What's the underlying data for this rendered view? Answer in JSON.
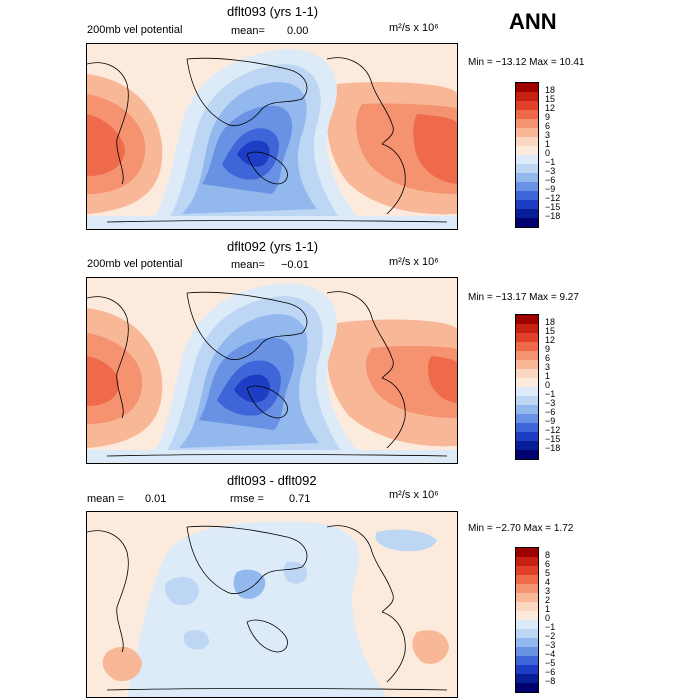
{
  "season": "ANN",
  "panels": [
    {
      "title": "dflt093 (yrs 1-1)",
      "field_label": "200mb vel potential",
      "mean_label": "mean=",
      "mean_value": "0.00",
      "units": "m²/s x 10⁶",
      "min_max": "Min = −13.12 Max =   10.41",
      "levels": [
        "18",
        "15",
        "12",
        "9",
        "6",
        "3",
        "1",
        "0",
        "−1",
        "−3",
        "−6",
        "−9",
        "−12",
        "−15",
        "−18"
      ],
      "colors": [
        "#9e0000",
        "#c82010",
        "#e0402a",
        "#ee6a4a",
        "#f59270",
        "#f8b898",
        "#fbd6c0",
        "#fcebdd",
        "#dcebf7",
        "#bcd6f4",
        "#92b8ee",
        "#6992e4",
        "#3f66d8",
        "#1e3cc4",
        "#081e96",
        "#00006e"
      ]
    },
    {
      "title": "dflt092 (yrs 1-1)",
      "field_label": "200mb vel potential",
      "mean_label": "mean=",
      "mean_value": "−0.01",
      "units": "m²/s x 10⁶",
      "min_max": "Min = −13.17 Max =    9.27",
      "levels": [
        "18",
        "15",
        "12",
        "9",
        "6",
        "3",
        "1",
        "0",
        "−1",
        "−3",
        "−6",
        "−9",
        "−12",
        "−15",
        "−18"
      ],
      "colors": [
        "#9e0000",
        "#c82010",
        "#e0402a",
        "#ee6a4a",
        "#f59270",
        "#f8b898",
        "#fbd6c0",
        "#fcebdd",
        "#dcebf7",
        "#bcd6f4",
        "#92b8ee",
        "#6992e4",
        "#3f66d8",
        "#1e3cc4",
        "#081e96",
        "#00006e"
      ]
    },
    {
      "title": "dflt093 - dflt092",
      "mean_label": "mean =",
      "mean_value": "0.01",
      "rmse_label": "rmse =",
      "rmse_value": "0.71",
      "units": "m²/s x 10⁶",
      "min_max": "Min = −2.70 Max =   1.72",
      "levels": [
        "8",
        "6",
        "5",
        "4",
        "3",
        "2",
        "1",
        "0",
        "−1",
        "−2",
        "−3",
        "−4",
        "−5",
        "−6",
        "−8"
      ],
      "colors": [
        "#9e0000",
        "#c82010",
        "#e0402a",
        "#ee6a4a",
        "#f59270",
        "#f8b898",
        "#fbd6c0",
        "#fcebdd",
        "#dcebf7",
        "#bcd6f4",
        "#92b8ee",
        "#6992e4",
        "#3f66d8",
        "#1e3cc4",
        "#081e96",
        "#00006e"
      ]
    }
  ]
}
